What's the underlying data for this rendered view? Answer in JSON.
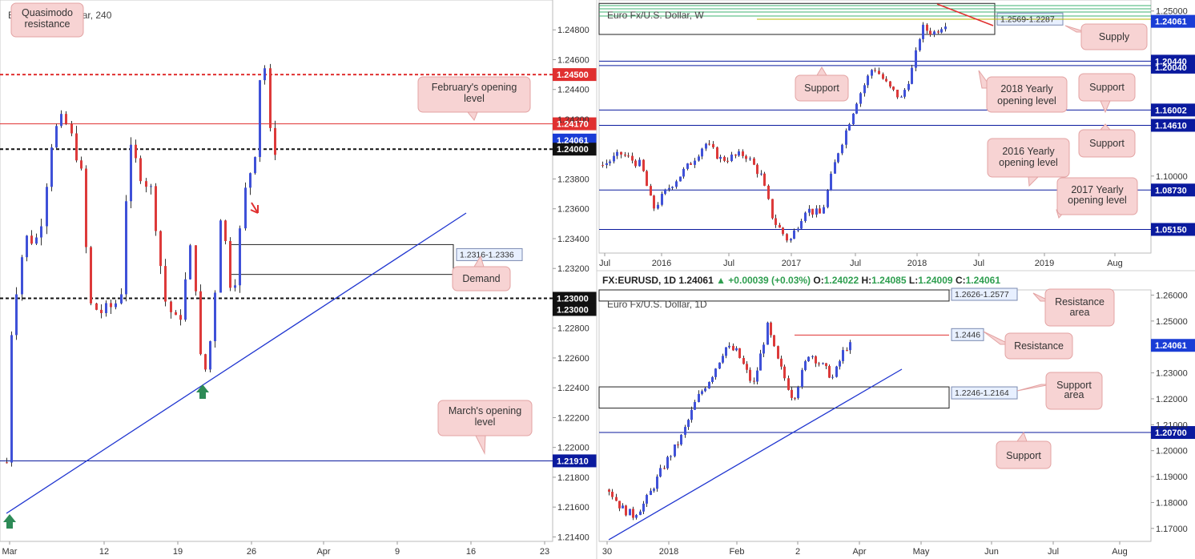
{
  "colors": {
    "up": "#3f51d8",
    "down": "#dd3a3a",
    "support": "#0a1a9e",
    "resistance": "#e03030",
    "priceTag": "#1a3dd6",
    "callout": "#f7d3d3",
    "calloutBorder": "#e3a3a3",
    "arrow": "#2e8b57"
  },
  "chart_data": [
    {
      "type": "candlestick",
      "title": "Euro Fx/U.S. Dollar, 240",
      "x_tick_labels": [
        "Mar",
        "12",
        "19",
        "26",
        "Apr",
        "9",
        "16",
        "23"
      ],
      "y_tick_labels": [
        "1.24800",
        "1.24600",
        "1.24400",
        "1.24200",
        "1.23800",
        "1.23600",
        "1.23400",
        "1.23200",
        "1.22800",
        "1.22600",
        "1.22400",
        "1.22200",
        "1.22000",
        "1.21800",
        "1.21600",
        "1.21400"
      ],
      "ylim": [
        1.2137,
        1.25
      ],
      "price_tags": [
        {
          "value": "1.24500",
          "kind": "resistance-dashed"
        },
        {
          "value": "1.24170",
          "kind": "resistance"
        },
        {
          "value": "1.24061",
          "kind": "last"
        },
        {
          "value": "1.24000",
          "kind": "round-dashed"
        },
        {
          "value": "1.23000",
          "kind": "round-dashed"
        },
        {
          "value": "1.23000",
          "kind": "round-dashed"
        },
        {
          "value": "1.21910",
          "kind": "support"
        }
      ],
      "zones": [
        {
          "label": "1.2316-1.2336",
          "low": 1.2316,
          "high": 1.2336
        }
      ],
      "callouts": [
        "Quasimodo resistance",
        "February's opening level",
        "Demand",
        "March's opening level"
      ]
    },
    {
      "type": "candlestick",
      "title": "Euro Fx/U.S. Dollar, W",
      "x_tick_labels": [
        "Jul",
        "2016",
        "Jul",
        "2017",
        "Jul",
        "2018",
        "Jul",
        "2019",
        "Aug"
      ],
      "y_tick_labels": [
        "1.25000",
        "1.10000"
      ],
      "ylim": [
        1.03,
        1.26
      ],
      "price_tags": [
        {
          "value": "1.24061",
          "kind": "last"
        },
        {
          "value": "1.20440",
          "kind": "support"
        },
        {
          "value": "1.20040",
          "kind": "support"
        },
        {
          "value": "1.16002",
          "kind": "support"
        },
        {
          "value": "1.14610",
          "kind": "support"
        },
        {
          "value": "1.08730",
          "kind": "support"
        },
        {
          "value": "1.05150",
          "kind": "support"
        }
      ],
      "zones": [
        {
          "label": "1.2569-1.2287",
          "low": 1.2287,
          "high": 1.2569
        }
      ],
      "callouts": [
        "Supply",
        "Support",
        "2018 Yearly opening level",
        "Support",
        "Support",
        "2016 Yearly opening level",
        "2017 Yearly opening level"
      ]
    },
    {
      "type": "candlestick",
      "title": "Euro Fx/U.S. Dollar, 1D",
      "header": {
        "symbol": "FX:EURUSD, 1D",
        "last": "1.24061",
        "change": "+0.00039 (+0.03%)",
        "o_label": "O:",
        "open": "1.24022",
        "h_label": "H:",
        "high": "1.24085",
        "l_label": "L:",
        "low": "1.24009",
        "c_label": "C:",
        "close": "1.24061"
      },
      "x_tick_labels": [
        "30",
        "2018",
        "Feb",
        "2",
        "Apr",
        "May",
        "Jun",
        "Jul",
        "Aug"
      ],
      "y_tick_labels": [
        "1.26000",
        "1.25000",
        "1.23000",
        "1.22000",
        "1.21000",
        "1.20000",
        "1.19000",
        "1.18000",
        "1.17000"
      ],
      "ylim": [
        1.165,
        1.262
      ],
      "price_tags": [
        {
          "value": "1.24061",
          "kind": "last"
        },
        {
          "value": "1.20700",
          "kind": "support"
        }
      ],
      "zones": [
        {
          "label": "1.2626-1.2577",
          "low": 1.2577,
          "high": 1.2626
        },
        {
          "label": "1.2246-1.2164",
          "low": 1.2164,
          "high": 1.2246
        }
      ],
      "levels": [
        {
          "label": "1.2446",
          "value": 1.2446
        }
      ],
      "callouts": [
        "Resistance area",
        "Resistance",
        "Support area",
        "Support"
      ]
    }
  ]
}
